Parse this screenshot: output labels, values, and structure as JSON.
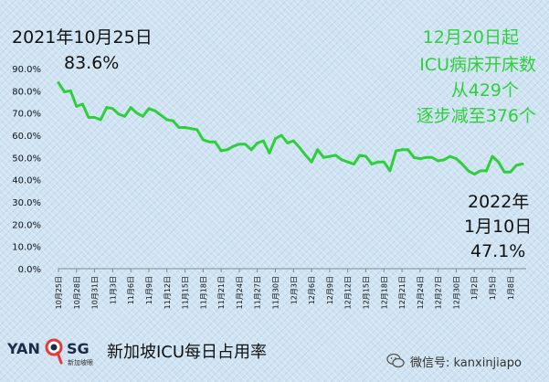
{
  "chart_data": {
    "type": "line",
    "title": "新加坡ICU每日占用率",
    "ylim": [
      0,
      90
    ],
    "yticks": [
      "0.0%",
      "10.0%",
      "20.0%",
      "30.0%",
      "40.0%",
      "50.0%",
      "60.0%",
      "70.0%",
      "80.0%",
      "90.0%"
    ],
    "xticks": [
      "10月25日",
      "10月28日",
      "10月31日",
      "11月3日",
      "11月6日",
      "11月9日",
      "11月12日",
      "11月15日",
      "11月18日",
      "11月21日",
      "11月24日",
      "11月27日",
      "11月30日",
      "12月3日",
      "12月6日",
      "12月9日",
      "12月12日",
      "12月15日",
      "12月18日",
      "12月21日",
      "12月24日",
      "12月27日",
      "12月30日",
      "1月2日",
      "1月5日",
      "1月8日"
    ],
    "line_color": "#2fcf3c",
    "series": [
      {
        "values": [
          83.6,
          79.5,
          80.0,
          73.0,
          74.0,
          68.0,
          68.0,
          67.0,
          72.5,
          72.0,
          69.5,
          68.5,
          72.5,
          70.0,
          68.5,
          72.0,
          71.0,
          69.0,
          67.0,
          66.5,
          63.5,
          63.5,
          63.0,
          62.5,
          58.0,
          57.0,
          57.0,
          53.0,
          53.5,
          55.0,
          56.0,
          56.0,
          53.5,
          56.5,
          57.5,
          52.0,
          58.5,
          60.0,
          56.5,
          57.5,
          54.5,
          51.0,
          48.0,
          53.5,
          50.0,
          50.5,
          51.0,
          49.0,
          48.0,
          47.0,
          51.0,
          50.5,
          47.0,
          48.0,
          48.0,
          44.0,
          53.0,
          53.5,
          53.5,
          50.0,
          49.5,
          50.0,
          50.0,
          48.5,
          49.0,
          50.5,
          49.5,
          47.0,
          44.0,
          42.5,
          44.0,
          44.0,
          50.5,
          48.0,
          43.5,
          43.5,
          46.5,
          47.1
        ]
      }
    ]
  },
  "annotations": {
    "start_date": "2021年10月25日",
    "start_value": "83.6%",
    "note_line1": "12月20日起",
    "note_line2": "ICU病床开床数",
    "note_line3": "从429个",
    "note_line4": "逐步减至376个",
    "end_year": "2022年",
    "end_date": "1月10日",
    "end_value": "47.1%"
  },
  "footer": {
    "logo_left": "YAN",
    "logo_right": "SG",
    "logo_sub": "新加坡眼",
    "wechat_label": "微信号: kanxinjiapo"
  }
}
